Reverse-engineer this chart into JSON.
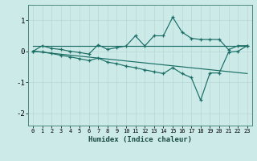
{
  "xlabel": "Humidex (Indice chaleur)",
  "bg_color": "#cceae8",
  "line_color": "#1a6e65",
  "grid_color": "#b8d8d5",
  "xlim": [
    -0.5,
    23.5
  ],
  "ylim": [
    -2.4,
    1.5
  ],
  "xticks": [
    0,
    1,
    2,
    3,
    4,
    5,
    6,
    7,
    8,
    9,
    10,
    11,
    12,
    13,
    14,
    15,
    16,
    17,
    18,
    19,
    20,
    21,
    22,
    23
  ],
  "yticks": [
    -2,
    -1,
    0,
    1
  ],
  "curve1_x": [
    0,
    1,
    2,
    3,
    4,
    5,
    6,
    7,
    8,
    9,
    10,
    11,
    12,
    13,
    14,
    15,
    16,
    17,
    18,
    19,
    20,
    21,
    22,
    23
  ],
  "curve1_y": [
    0.0,
    0.18,
    0.09,
    0.06,
    0.0,
    -0.04,
    -0.09,
    0.21,
    0.06,
    0.12,
    0.17,
    0.5,
    0.17,
    0.5,
    0.5,
    1.1,
    0.62,
    0.42,
    0.38,
    0.38,
    0.38,
    0.05,
    0.18,
    0.18
  ],
  "curve2_x": [
    0,
    23
  ],
  "curve2_y": [
    0.18,
    0.18
  ],
  "curve3_x": [
    0,
    1,
    2,
    3,
    4,
    5,
    6,
    7,
    8,
    9,
    10,
    11,
    12,
    13,
    14,
    15,
    16,
    17,
    18,
    19,
    20,
    21,
    22,
    23
  ],
  "curve3_y": [
    0.0,
    -0.02,
    -0.07,
    -0.13,
    -0.18,
    -0.24,
    -0.3,
    -0.22,
    -0.35,
    -0.4,
    -0.48,
    -0.53,
    -0.6,
    -0.66,
    -0.72,
    -0.53,
    -0.72,
    -0.85,
    -1.58,
    -0.7,
    -0.7,
    -0.03,
    0.0,
    0.18
  ],
  "curve4_x": [
    0,
    23
  ],
  "curve4_y": [
    0.0,
    -0.72
  ]
}
